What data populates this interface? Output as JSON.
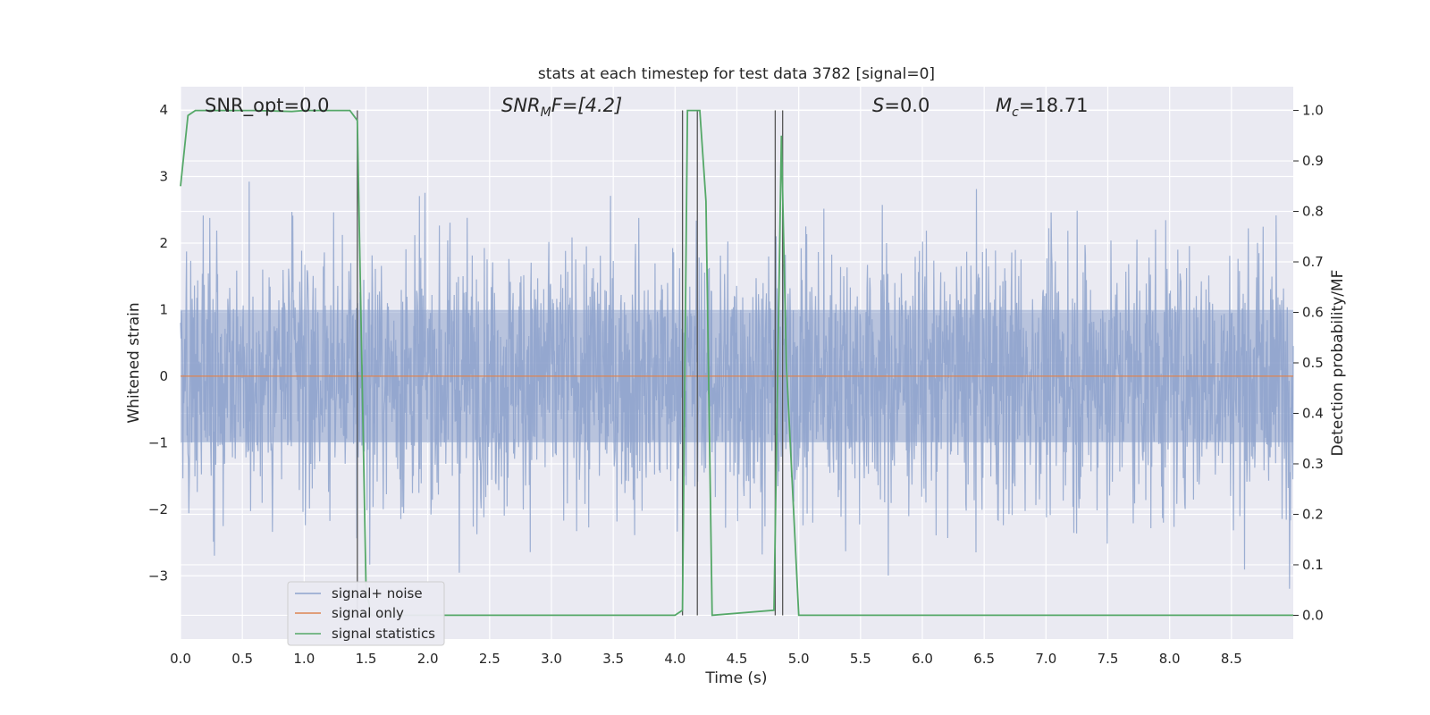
{
  "chart_data": {
    "type": "line",
    "title": "stats at each timestep for test data 3782 [signal=0]",
    "xlabel": "Time (s)",
    "ylabel": "Whitened strain",
    "y2label": "Detection probability/MF",
    "xlim": [
      0,
      9.0
    ],
    "ylim": [
      -3.95,
      4.35
    ],
    "y2lim": [
      -0.047,
      1.047
    ],
    "xticks": [
      "0.0",
      "0.5",
      "1.0",
      "1.5",
      "2.0",
      "2.5",
      "3.0",
      "3.5",
      "4.0",
      "4.5",
      "5.0",
      "5.5",
      "6.0",
      "6.5",
      "7.0",
      "7.5",
      "8.0",
      "8.5"
    ],
    "xtick_values": [
      0,
      0.5,
      1,
      1.5,
      2,
      2.5,
      3,
      3.5,
      4,
      4.5,
      5,
      5.5,
      6,
      6.5,
      7,
      7.5,
      8,
      8.5
    ],
    "yticks": [
      "4",
      "3",
      "2",
      "1",
      "0",
      "−1",
      "−2",
      "−3"
    ],
    "ytick_values": [
      4,
      3,
      2,
      1,
      0,
      -1,
      -2,
      -3
    ],
    "y2ticks": [
      "1.0",
      "0.9",
      "0.8",
      "0.7",
      "0.6",
      "0.5",
      "0.4",
      "0.3",
      "0.2",
      "0.1",
      "0.0"
    ],
    "y2tick_values": [
      1.0,
      0.9,
      0.8,
      0.7,
      0.6,
      0.5,
      0.4,
      0.3,
      0.2,
      0.1,
      0.0
    ],
    "grid": true,
    "legend_position": "bottom-left",
    "annotations": {
      "snr_opt": "SNR_opt=0.0",
      "snr_mf_main": "SNR",
      "snr_mf_sub": "M",
      "snr_mf_rest": "F=[4.2]",
      "s_main": "S",
      "s_rest": "=0.0",
      "mc_main": "M",
      "mc_sub": "c",
      "mc_rest": "=18.71"
    },
    "series": [
      {
        "name": "signal+ noise",
        "axis": "left",
        "color": "#8ea3cc",
        "description_only": "dense whitened-noise time series, amplitude roughly within ±2.5 with peaks up to ~3.6"
      },
      {
        "name": "signal only",
        "axis": "left",
        "color": "#dd8452",
        "x": [
          0,
          9.0
        ],
        "y": [
          0,
          0
        ]
      },
      {
        "name": "signal statistics",
        "axis": "right",
        "color": "#55a868",
        "x": [
          0,
          0.06,
          0.12,
          0.3,
          0.6,
          0.9,
          1.0,
          1.2,
          1.37,
          1.43,
          1.5,
          1.54,
          3.2,
          4.0,
          4.06,
          4.1,
          4.2,
          4.25,
          4.3,
          4.8,
          4.86,
          4.9,
          5.0,
          9.0
        ],
        "y": [
          0.85,
          0.99,
          1.0,
          1.0,
          1.0,
          0.998,
          1.0,
          1.0,
          1.0,
          0.98,
          0.06,
          0.0,
          0.0,
          0.0,
          0.01,
          1.0,
          1.0,
          0.82,
          0.0,
          0.01,
          0.95,
          0.5,
          0.0,
          0.0
        ]
      }
    ],
    "vlines": [
      1.43,
      4.06,
      4.18,
      4.81,
      4.87
    ],
    "vline_color": "#555555"
  }
}
